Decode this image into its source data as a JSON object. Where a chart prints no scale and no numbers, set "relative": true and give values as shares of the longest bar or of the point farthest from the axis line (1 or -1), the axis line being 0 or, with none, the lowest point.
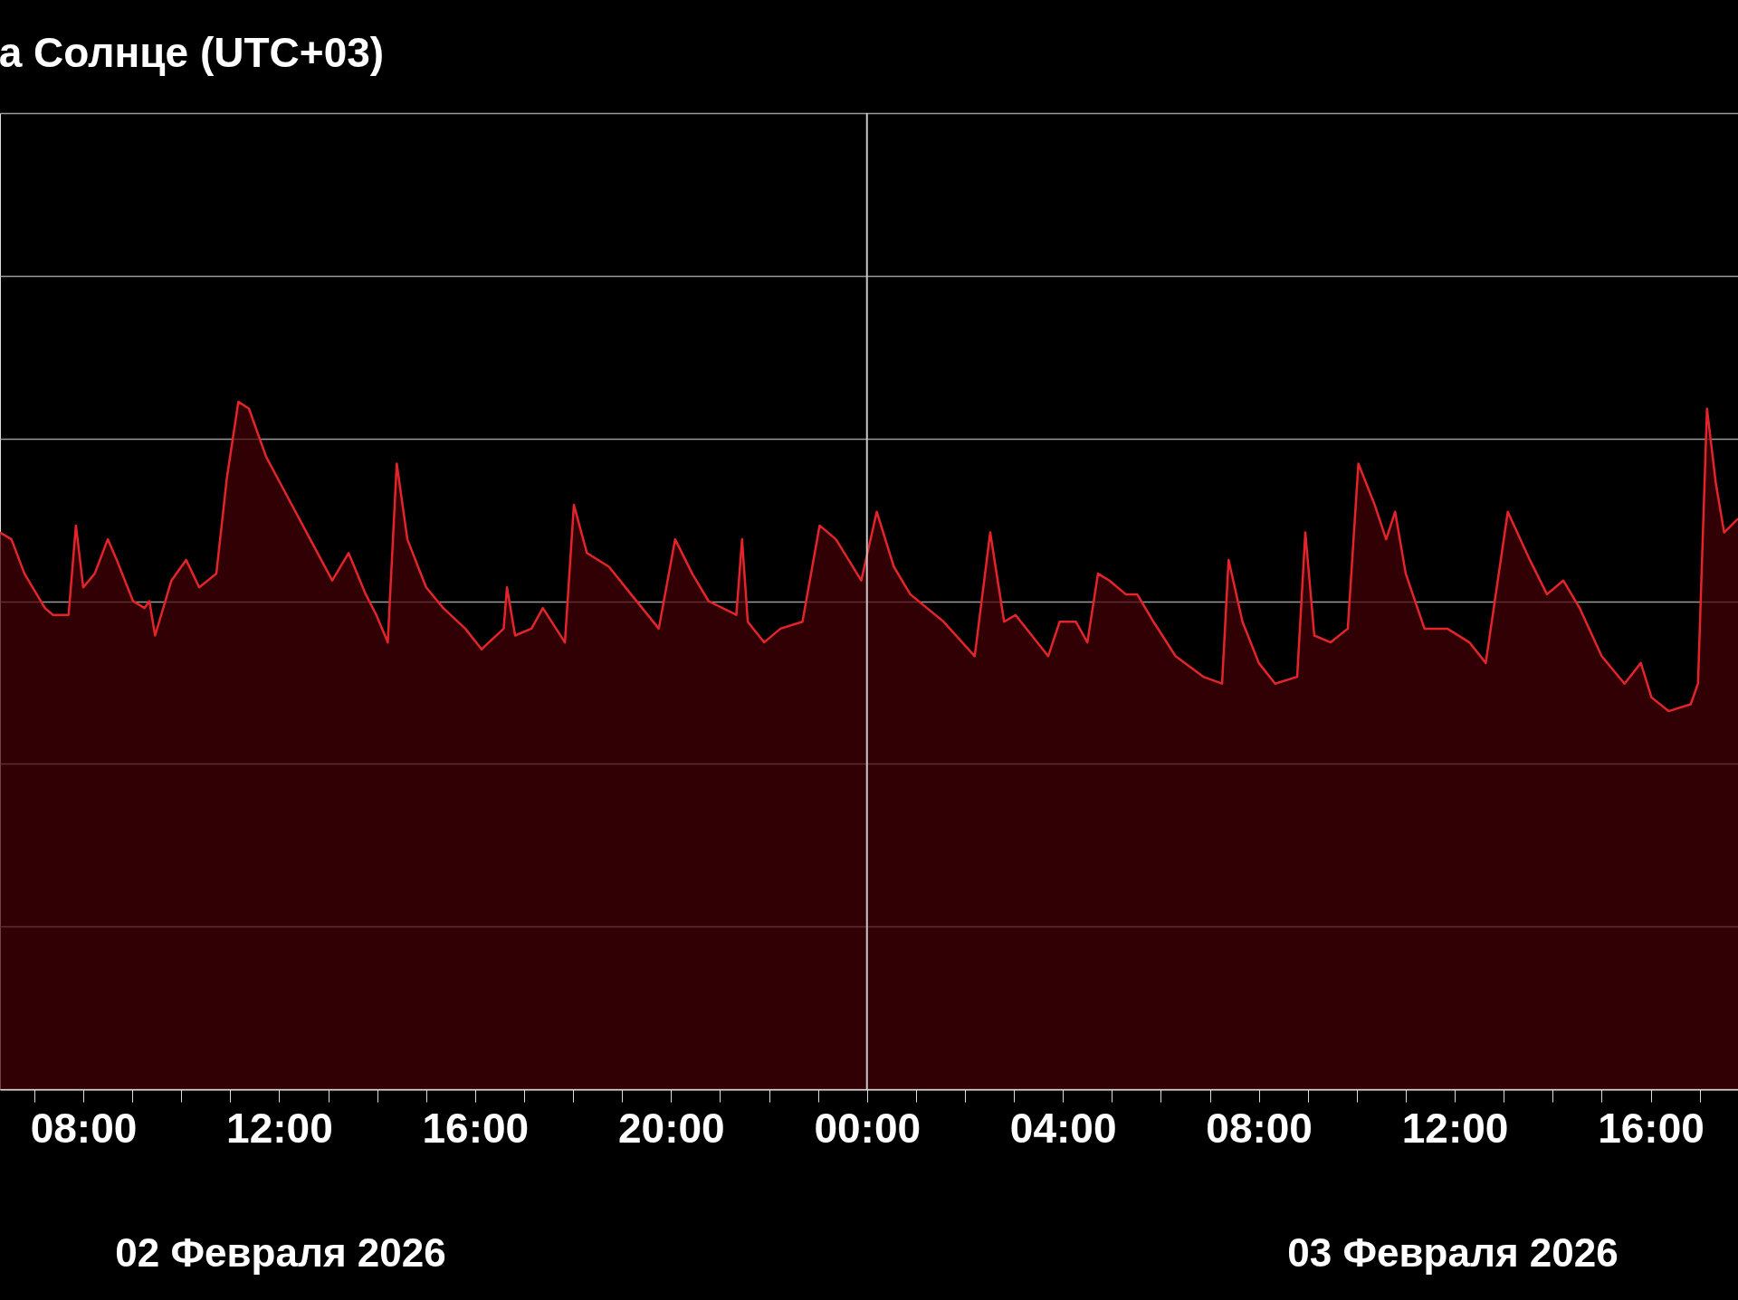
{
  "chart_data": {
    "type": "area",
    "title": "а Солнце (UTC+03)",
    "relative": true,
    "grid": "y",
    "xlim": [
      "2026-02-02T06:18",
      "2026-02-03T17:47"
    ],
    "xticks": [
      {
        "value": "2026-02-02T07:00",
        "label": null
      },
      {
        "value": "2026-02-02T08:00",
        "label": "08:00"
      },
      {
        "value": "2026-02-02T09:00",
        "label": null
      },
      {
        "value": "2026-02-02T10:00",
        "label": null
      },
      {
        "value": "2026-02-02T11:00",
        "label": null
      },
      {
        "value": "2026-02-02T12:00",
        "label": "12:00"
      },
      {
        "value": "2026-02-02T13:00",
        "label": null
      },
      {
        "value": "2026-02-02T14:00",
        "label": null
      },
      {
        "value": "2026-02-02T15:00",
        "label": null
      },
      {
        "value": "2026-02-02T16:00",
        "label": "16:00"
      },
      {
        "value": "2026-02-02T17:00",
        "label": null
      },
      {
        "value": "2026-02-02T18:00",
        "label": null
      },
      {
        "value": "2026-02-02T19:00",
        "label": null
      },
      {
        "value": "2026-02-02T20:00",
        "label": "20:00"
      },
      {
        "value": "2026-02-02T21:00",
        "label": null
      },
      {
        "value": "2026-02-02T22:00",
        "label": null
      },
      {
        "value": "2026-02-02T23:00",
        "label": null
      },
      {
        "value": "2026-02-03T00:00",
        "label": "00:00"
      },
      {
        "value": "2026-02-03T01:00",
        "label": null
      },
      {
        "value": "2026-02-03T02:00",
        "label": null
      },
      {
        "value": "2026-02-03T03:00",
        "label": null
      },
      {
        "value": "2026-02-03T04:00",
        "label": "04:00"
      },
      {
        "value": "2026-02-03T05:00",
        "label": null
      },
      {
        "value": "2026-02-03T06:00",
        "label": null
      },
      {
        "value": "2026-02-03T07:00",
        "label": null
      },
      {
        "value": "2026-02-03T08:00",
        "label": "08:00"
      },
      {
        "value": "2026-02-03T09:00",
        "label": null
      },
      {
        "value": "2026-02-03T10:00",
        "label": null
      },
      {
        "value": "2026-02-03T11:00",
        "label": null
      },
      {
        "value": "2026-02-03T12:00",
        "label": "12:00"
      },
      {
        "value": "2026-02-03T13:00",
        "label": null
      },
      {
        "value": "2026-02-03T14:00",
        "label": null
      },
      {
        "value": "2026-02-03T15:00",
        "label": null
      },
      {
        "value": "2026-02-03T16:00",
        "label": "16:00"
      },
      {
        "value": "2026-02-03T17:00",
        "label": null
      }
    ],
    "ref_lines": [
      {
        "axis": "x",
        "value": "2026-02-03T00:00",
        "color": "#c8c8c8"
      }
    ],
    "annotations": [
      "02 Февраля 2026",
      "03 Февраля 2026"
    ],
    "series": [
      {
        "color": "#e3242b",
        "x": [
          "2026-02-02T06:18",
          "2026-02-02T06:32",
          "2026-02-02T06:48",
          "2026-02-02T07:13",
          "2026-02-02T07:23",
          "2026-02-02T07:42",
          "2026-02-02T07:51",
          "2026-02-02T08:00",
          "2026-02-02T08:14",
          "2026-02-02T08:30",
          "2026-02-02T08:41",
          "2026-02-02T09:01",
          "2026-02-02T09:15",
          "2026-02-02T09:21",
          "2026-02-02T09:28",
          "2026-02-02T09:48",
          "2026-02-02T10:06",
          "2026-02-02T10:22",
          "2026-02-02T10:43",
          "2026-02-02T10:56",
          "2026-02-02T11:10",
          "2026-02-02T11:23",
          "2026-02-02T11:44",
          "2026-02-02T12:11",
          "2026-02-02T12:38",
          "2026-02-02T13:05",
          "2026-02-02T13:25",
          "2026-02-02T13:46",
          "2026-02-02T13:59",
          "2026-02-02T14:13",
          "2026-02-02T14:24",
          "2026-02-02T14:37",
          "2026-02-02T15:00",
          "2026-02-02T15:21",
          "2026-02-02T15:48",
          "2026-02-02T16:08",
          "2026-02-02T16:35",
          "2026-02-02T16:39",
          "2026-02-02T16:49",
          "2026-02-02T17:09",
          "2026-02-02T17:23",
          "2026-02-02T17:50",
          "2026-02-02T18:01",
          "2026-02-02T18:17",
          "2026-02-02T18:44",
          "2026-02-02T19:11",
          "2026-02-02T19:45",
          "2026-02-02T20:05",
          "2026-02-02T20:26",
          "2026-02-02T20:46",
          "2026-02-02T21:20",
          "2026-02-02T21:27",
          "2026-02-02T21:34",
          "2026-02-02T21:54",
          "2026-02-02T22:14",
          "2026-02-02T22:41",
          "2026-02-02T23:02",
          "2026-02-02T23:22",
          "2026-02-02T23:53",
          "2026-02-03T00:12",
          "2026-02-03T00:33",
          "2026-02-03T00:53",
          "2026-02-03T01:34",
          "2026-02-03T02:12",
          "2026-02-03T02:31",
          "2026-02-03T02:48",
          "2026-02-03T03:02",
          "2026-02-03T03:22",
          "2026-02-03T03:42",
          "2026-02-03T03:56",
          "2026-02-03T04:16",
          "2026-02-03T04:30",
          "2026-02-03T04:43",
          "2026-02-03T04:57",
          "2026-02-03T05:17",
          "2026-02-03T05:31",
          "2026-02-03T05:51",
          "2026-02-03T06:18",
          "2026-02-03T06:52",
          "2026-02-03T07:15",
          "2026-02-03T07:23",
          "2026-02-03T07:40",
          "2026-02-03T08:00",
          "2026-02-03T08:20",
          "2026-02-03T08:47",
          "2026-02-03T08:57",
          "2026-02-03T09:08",
          "2026-02-03T09:28",
          "2026-02-03T09:49",
          "2026-02-03T10:02",
          "2026-02-03T10:22",
          "2026-02-03T10:36",
          "2026-02-03T10:47",
          "2026-02-03T11:00",
          "2026-02-03T11:23",
          "2026-02-03T11:51",
          "2026-02-03T12:18",
          "2026-02-03T12:38",
          "2026-02-03T13:05",
          "2026-02-03T13:32",
          "2026-02-03T13:53",
          "2026-02-03T14:13",
          "2026-02-03T14:33",
          "2026-02-03T15:00",
          "2026-02-03T15:28",
          "2026-02-03T15:48",
          "2026-02-03T16:01",
          "2026-02-03T16:22",
          "2026-02-03T16:49",
          "2026-02-03T16:58",
          "2026-02-03T17:09",
          "2026-02-03T17:20",
          "2026-02-03T17:30",
          "2026-02-03T17:47"
        ],
        "values": [
          0.81,
          0.8,
          0.75,
          0.7,
          0.69,
          0.69,
          0.82,
          0.73,
          0.75,
          0.8,
          0.77,
          0.71,
          0.7,
          0.71,
          0.66,
          0.74,
          0.77,
          0.73,
          0.75,
          0.89,
          1.0,
          0.99,
          0.92,
          0.86,
          0.8,
          0.74,
          0.78,
          0.72,
          0.69,
          0.65,
          0.91,
          0.8,
          0.73,
          0.7,
          0.67,
          0.64,
          0.67,
          0.73,
          0.66,
          0.67,
          0.7,
          0.65,
          0.85,
          0.78,
          0.76,
          0.72,
          0.67,
          0.8,
          0.75,
          0.71,
          0.69,
          0.8,
          0.68,
          0.65,
          0.67,
          0.68,
          0.82,
          0.8,
          0.74,
          0.84,
          0.76,
          0.72,
          0.68,
          0.63,
          0.81,
          0.68,
          0.69,
          0.66,
          0.63,
          0.68,
          0.68,
          0.65,
          0.75,
          0.74,
          0.72,
          0.72,
          0.68,
          0.63,
          0.6,
          0.59,
          0.77,
          0.68,
          0.62,
          0.59,
          0.6,
          0.81,
          0.66,
          0.65,
          0.67,
          0.91,
          0.85,
          0.8,
          0.84,
          0.75,
          0.67,
          0.67,
          0.65,
          0.62,
          0.84,
          0.77,
          0.72,
          0.74,
          0.7,
          0.63,
          0.59,
          0.62,
          0.57,
          0.55,
          0.56,
          0.59,
          0.99,
          0.88,
          0.81,
          0.83
        ]
      }
    ]
  }
}
